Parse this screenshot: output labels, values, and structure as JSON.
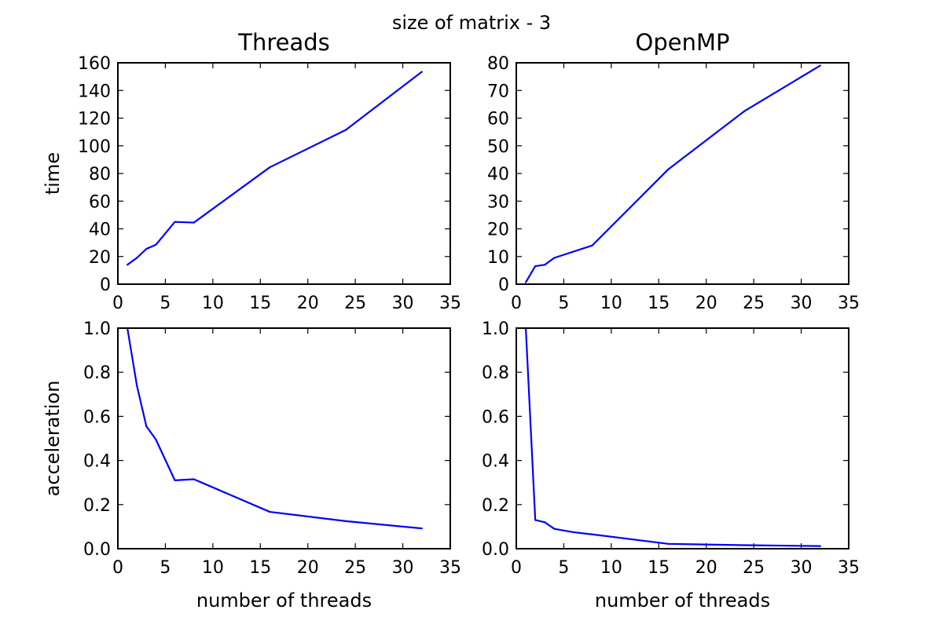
{
  "figure": {
    "suptitle": "size of matrix - 3"
  },
  "chart_data": [
    {
      "type": "line",
      "title": "Threads",
      "xlabel": "",
      "ylabel": "time",
      "xlim": [
        0,
        35
      ],
      "ylim": [
        0,
        160
      ],
      "xticks": [
        0,
        5,
        10,
        15,
        20,
        25,
        30,
        35
      ],
      "yticks": [
        0,
        20,
        40,
        60,
        80,
        100,
        120,
        140,
        160
      ],
      "ytick_format": "int",
      "color": "#0000ff",
      "series": [
        {
          "x": [
            1,
            2,
            3,
            4,
            6,
            8,
            16,
            24,
            32
          ],
          "y": [
            14,
            19,
            25.5,
            28.5,
            45,
            44.5,
            84.5,
            111.5,
            153.5
          ]
        }
      ]
    },
    {
      "type": "line",
      "title": "OpenMP",
      "xlabel": "",
      "ylabel": "",
      "xlim": [
        0,
        35
      ],
      "ylim": [
        0,
        80
      ],
      "xticks": [
        0,
        5,
        10,
        15,
        20,
        25,
        30,
        35
      ],
      "yticks": [
        0,
        10,
        20,
        30,
        40,
        50,
        60,
        70,
        80
      ],
      "ytick_format": "int",
      "color": "#0000ff",
      "series": [
        {
          "x": [
            1,
            2,
            3,
            4,
            8,
            16,
            24,
            32
          ],
          "y": [
            0.7,
            6.5,
            7,
            9.5,
            14,
            41.5,
            62.5,
            79
          ]
        }
      ]
    },
    {
      "type": "line",
      "title": "",
      "xlabel": "number of threads",
      "ylabel": "acceleration",
      "xlim": [
        0,
        35
      ],
      "ylim": [
        0,
        1.0
      ],
      "xticks": [
        0,
        5,
        10,
        15,
        20,
        25,
        30,
        35
      ],
      "yticks": [
        0.0,
        0.2,
        0.4,
        0.6,
        0.8,
        1.0
      ],
      "ytick_format": "1dp",
      "color": "#0000ff",
      "series": [
        {
          "x": [
            1,
            2,
            3,
            4,
            6,
            8,
            16,
            24,
            32
          ],
          "y": [
            1.0,
            0.74,
            0.555,
            0.495,
            0.31,
            0.315,
            0.167,
            0.125,
            0.092
          ]
        }
      ]
    },
    {
      "type": "line",
      "title": "",
      "xlabel": "number of threads",
      "ylabel": "",
      "xlim": [
        0,
        35
      ],
      "ylim": [
        0,
        1.0
      ],
      "xticks": [
        0,
        5,
        10,
        15,
        20,
        25,
        30,
        35
      ],
      "yticks": [
        0.0,
        0.2,
        0.4,
        0.6,
        0.8,
        1.0
      ],
      "ytick_format": "1dp",
      "color": "#0000ff",
      "series": [
        {
          "x": [
            1,
            2,
            3,
            4,
            6,
            8,
            16,
            24,
            32
          ],
          "y": [
            1.0,
            0.13,
            0.12,
            0.09,
            0.075,
            0.065,
            0.022,
            0.016,
            0.012
          ]
        }
      ]
    }
  ]
}
